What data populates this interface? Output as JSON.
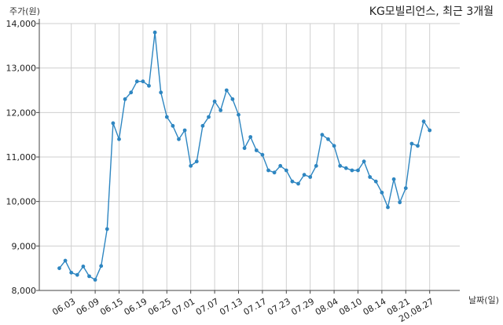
{
  "chart_data": {
    "type": "line",
    "title": "KG모빌리언스, 최근 3개월",
    "ylabel": "주가(원)",
    "xlabel": "날짜(일)",
    "ylim": [
      8000,
      14000
    ],
    "yticks": [
      8000,
      9000,
      10000,
      11000,
      12000,
      13000,
      14000
    ],
    "ytick_labels": [
      "8,000",
      "9,000",
      "10,000",
      "11,000",
      "12,000",
      "13,000",
      "14,000"
    ],
    "xtick_labels": [
      "06.03",
      "06.09",
      "06.15",
      "06.19",
      "06.25",
      "07.01",
      "07.07",
      "07.13",
      "07.17",
      "07.23",
      "07.29",
      "08.04",
      "08.10",
      "08.14",
      "08.21",
      "20.08.27"
    ],
    "xtick_index": [
      2,
      6,
      10,
      14,
      18,
      22,
      26,
      30,
      34,
      38,
      42,
      46,
      50,
      54,
      58,
      62
    ],
    "grid": true,
    "color": "#2e86c1",
    "series": [
      {
        "values": [
          8500,
          8670,
          8400,
          8350,
          8540,
          8320,
          8240,
          8550,
          9380,
          11760,
          11400,
          12300,
          12450,
          12700,
          12700,
          12600,
          13800,
          12450,
          11900,
          11700,
          11400,
          11600,
          10800,
          10900,
          11700,
          11900,
          12250,
          12050,
          12500,
          12300,
          11950,
          11200,
          11450,
          11150,
          11050,
          10700,
          10650,
          10800,
          10700,
          10450,
          10400,
          10600,
          10550,
          10800,
          11500,
          11400,
          11250,
          10800,
          10750,
          10700,
          10700,
          10900,
          10550,
          10450,
          10200,
          9870,
          10500,
          9980,
          10300,
          11300,
          11250,
          11800,
          11600
        ]
      }
    ]
  }
}
